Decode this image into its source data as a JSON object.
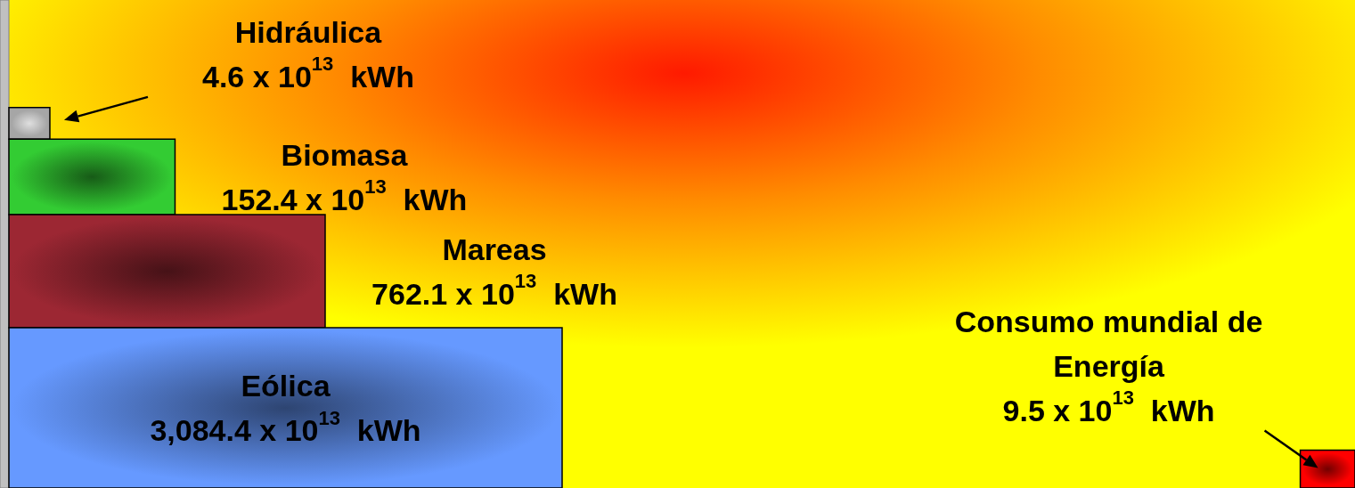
{
  "chart_data": {
    "type": "other",
    "categories": [
      "Hidráulica",
      "Biomasa",
      "Mareas",
      "Eólica",
      "Consumo mundial de Energía"
    ],
    "values": [
      4.6,
      152.4,
      762.1,
      3084.4,
      9.5
    ],
    "value_labels": [
      "4.6 x 10$^{13}$  kWh",
      "152.4 x 10$^{13}$  kWh",
      "762.1 x 10$^{13}$  kWh",
      "3,084.4 x 10$^{13}$  kWh",
      "9.5 x 10$^{13}$  kWh"
    ],
    "colors": [
      "#a6a6a6",
      "#33cc33",
      "#9c2733",
      "#6699ff",
      "#ff0000"
    ]
  }
}
